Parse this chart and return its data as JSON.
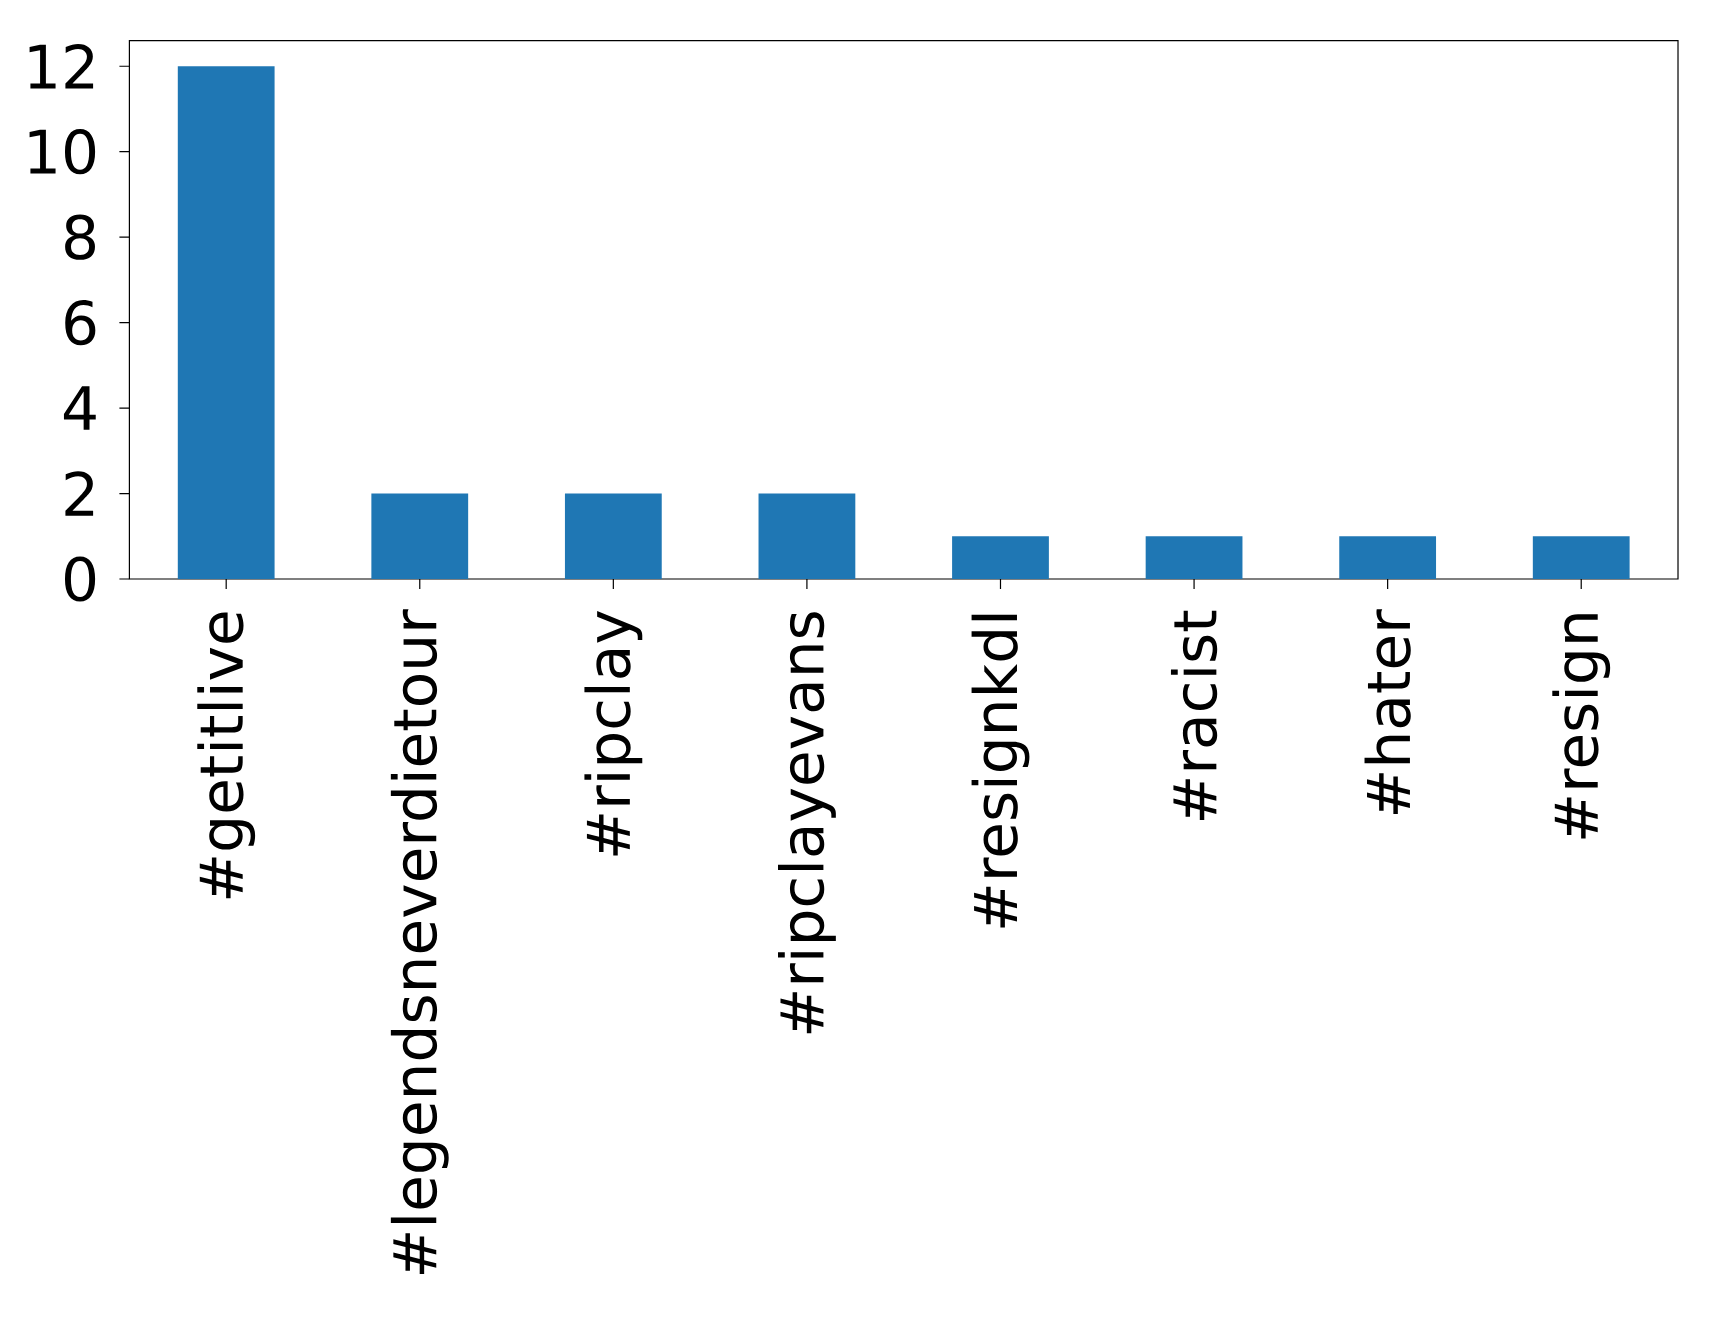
{
  "chart_data": {
    "type": "bar",
    "categories": [
      "#getitlive",
      "#legendsneverdietour",
      "#ripclay",
      "#ripclayevans",
      "#resignkdl",
      "#racist",
      "#hater",
      "#resign"
    ],
    "values": [
      12,
      2,
      2,
      2,
      1,
      1,
      1,
      1
    ],
    "color": "#1f77b4",
    "ylim": [
      0,
      12.6
    ],
    "yticks": [
      0,
      2,
      4,
      6,
      8,
      10,
      12
    ]
  }
}
